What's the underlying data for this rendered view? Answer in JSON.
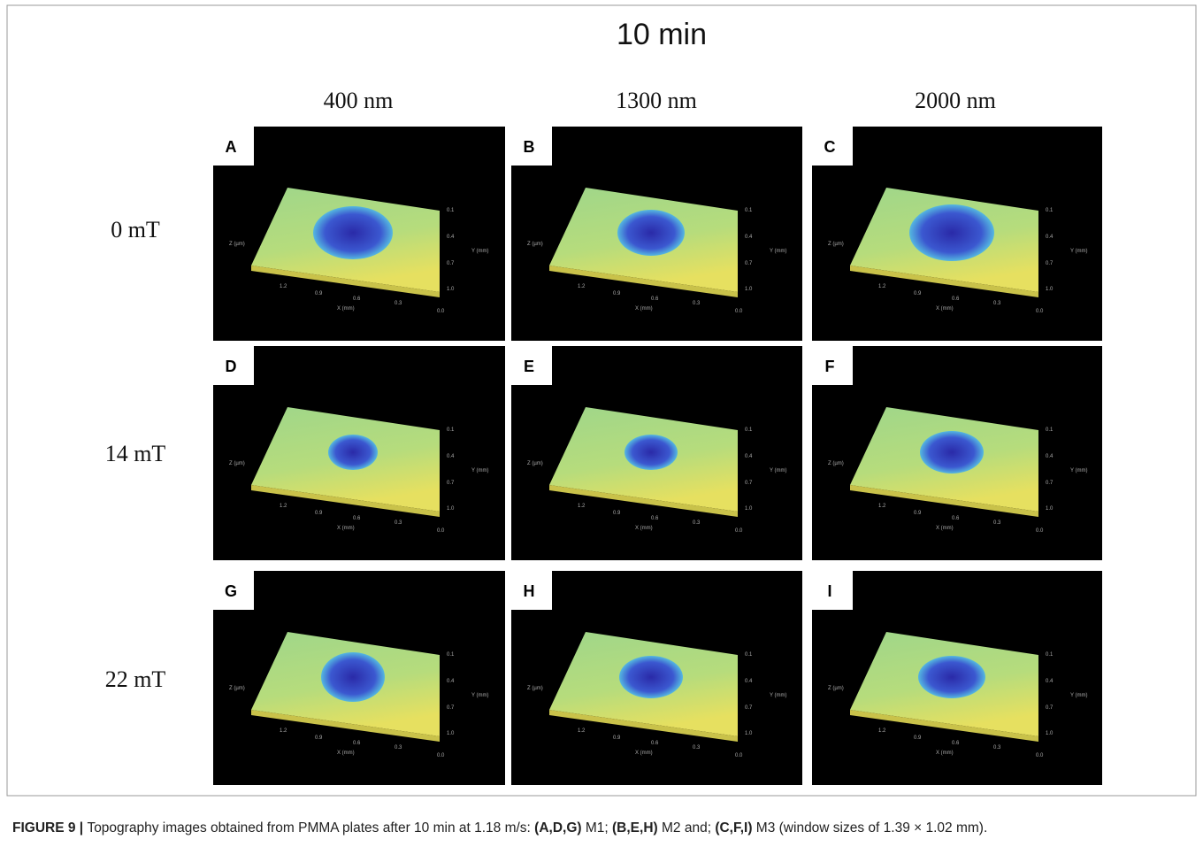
{
  "figure": {
    "title": "10 min",
    "columns": [
      "400 nm",
      "1300 nm",
      "2000 nm"
    ],
    "rows": [
      "0 mT",
      "14 mT",
      "22 mT"
    ],
    "panels": [
      "A",
      "B",
      "C",
      "D",
      "E",
      "F",
      "G",
      "H",
      "I"
    ],
    "plot_axes": {
      "x_label": "X (mm)",
      "x_ticks": [
        "1.2",
        "0.9",
        "0.6",
        "0.3",
        "0.0"
      ],
      "y_label": "Y (mm)",
      "y_ticks": [
        "0.1",
        "0.4",
        "0.7",
        "1.0"
      ],
      "z_label": "Z (µm)"
    },
    "caption": [
      {
        "text": "FIGURE 9 | ",
        "bold": true
      },
      {
        "text": "Topography images obtained from PMMA plates after 10 min at 1.18 m/s: ",
        "bold": false
      },
      {
        "text": "(A,D,G)",
        "bold": true
      },
      {
        "text": " M1; ",
        "bold": false
      },
      {
        "text": "(B,E,H)",
        "bold": true
      },
      {
        "text": " M2 and; ",
        "bold": false
      },
      {
        "text": "(C,F,I)",
        "bold": true
      },
      {
        "text": " M3 (window sizes of 1.39 × 1.02 mm).",
        "bold": false
      }
    ]
  }
}
